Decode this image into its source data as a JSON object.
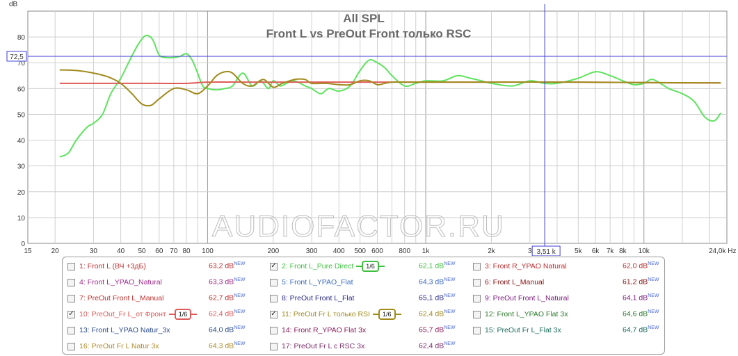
{
  "chart_data": {
    "type": "line",
    "title": "All SPL",
    "subtitle": "Front L vs PreOut Front только RSC",
    "watermark": "AUDIOFACTOR.RU",
    "y_unit": "dB",
    "x_unit": "Hz",
    "xscale": "log",
    "xlim": [
      15,
      24000
    ],
    "ylim": [
      0,
      90
    ],
    "grid": true,
    "x_tick_labels": [
      {
        "v": 15,
        "t": "15"
      },
      {
        "v": 20,
        "t": "20"
      },
      {
        "v": 30,
        "t": "30"
      },
      {
        "v": 40,
        "t": "40"
      },
      {
        "v": 50,
        "t": "50"
      },
      {
        "v": 60,
        "t": "60"
      },
      {
        "v": 70,
        "t": "70"
      },
      {
        "v": 80,
        "t": "80"
      },
      {
        "v": 100,
        "t": "100"
      },
      {
        "v": 200,
        "t": "200"
      },
      {
        "v": 300,
        "t": "300"
      },
      {
        "v": 400,
        "t": "400"
      },
      {
        "v": 500,
        "t": "500"
      },
      {
        "v": 600,
        "t": "600"
      },
      {
        "v": 800,
        "t": "800"
      },
      {
        "v": 1000,
        "t": "1k"
      },
      {
        "v": 2000,
        "t": "2k"
      },
      {
        "v": 3000,
        "t": "3"
      },
      {
        "v": 5000,
        "t": "5k"
      },
      {
        "v": 6000,
        "t": "6k"
      },
      {
        "v": 7000,
        "t": "7k"
      },
      {
        "v": 8000,
        "t": "8k"
      },
      {
        "v": 10000,
        "t": "10k"
      }
    ],
    "x_end_label": "24,0k Hz",
    "y_ticks": [
      0,
      10,
      20,
      30,
      40,
      50,
      60,
      70,
      80
    ],
    "cursor": {
      "freq": 3510,
      "freq_label": "3,51 k",
      "level": 72.5,
      "level_label": "72,5"
    },
    "series": [
      {
        "name": "2: Front L_Pure Direct",
        "color": "#5ee35e",
        "x": [
          21,
          23,
          25,
          28,
          30,
          33,
          36,
          40,
          44,
          48,
          52,
          56,
          60,
          65,
          70,
          75,
          80,
          85,
          90,
          95,
          100,
          110,
          120,
          130,
          145,
          160,
          175,
          190,
          200,
          215,
          230,
          250,
          280,
          300,
          330,
          360,
          400,
          450,
          500,
          550,
          600,
          650,
          700,
          800,
          900,
          1000,
          1200,
          1400,
          1600,
          1800,
          2000,
          2500,
          3000,
          3500,
          4000,
          5000,
          6000,
          7000,
          8000,
          9000,
          10000,
          11000,
          13000,
          15000,
          17000,
          19000,
          21000,
          22500
        ],
        "y": [
          33.5,
          35,
          40,
          45,
          46.5,
          50,
          58,
          64,
          71,
          77,
          80.5,
          79,
          73,
          72,
          72,
          72.5,
          73.5,
          71,
          66,
          61,
          60,
          59.5,
          60,
          61,
          66,
          61,
          63,
          60,
          63,
          61,
          62,
          63,
          61,
          60,
          58,
          60,
          59,
          61,
          67,
          71,
          70,
          68,
          65,
          61,
          62,
          63,
          63,
          65,
          64,
          63,
          62,
          61,
          63,
          62,
          62,
          64,
          66.5,
          65,
          63,
          61.5,
          62,
          63.5,
          60,
          58,
          55,
          49,
          47.5,
          50.5
        ]
      },
      {
        "name": "10: PreOut_Fr L_от Фронт",
        "color": "#e05a5a",
        "x": [
          21,
          30,
          40,
          50,
          60,
          80,
          100,
          150,
          200,
          300,
          500,
          1000,
          2000,
          5000,
          10000,
          15000,
          22500
        ],
        "y": [
          62,
          62,
          62,
          62,
          62,
          62,
          62.5,
          62.5,
          62.5,
          62.5,
          62.5,
          62.5,
          62.5,
          62.5,
          62.3,
          62.2,
          62.2
        ]
      },
      {
        "name": "11: PreOut Fr L только RSI",
        "color": "#a08a1c",
        "x": [
          21,
          25,
          30,
          35,
          40,
          45,
          50,
          55,
          60,
          70,
          80,
          90,
          100,
          110,
          120,
          130,
          145,
          160,
          180,
          200,
          220,
          250,
          280,
          300,
          350,
          400,
          450,
          500,
          550,
          600,
          650,
          700,
          800,
          900,
          1000,
          2000,
          5000,
          10000,
          22500
        ],
        "y": [
          67.2,
          67,
          66,
          64.5,
          62,
          58,
          54,
          53.5,
          56,
          60,
          59.5,
          58,
          61,
          65,
          66.5,
          66,
          62,
          61,
          63.5,
          60.5,
          62,
          63.5,
          63.5,
          62,
          62,
          61.5,
          61.5,
          63,
          63,
          61.5,
          62,
          62.5,
          62.5,
          62.5,
          62.5,
          62.5,
          62.5,
          62.3,
          62.2
        ]
      }
    ]
  },
  "legend": [
    {
      "id": "1",
      "label": "1: Front L (ВЧ +3дБ)",
      "value": "63,2 dB",
      "new": "NEW",
      "checked": false,
      "color": "#c03030",
      "vcolor": "#c03030",
      "col": 0,
      "row": 0
    },
    {
      "id": "2",
      "label": "2: Front L_Pure Direct",
      "value": "62,1 dB",
      "new": "NEW",
      "checked": true,
      "smoothing": "1/6",
      "color": "#3fbf3f",
      "vcolor": "#3fbf3f",
      "col": 1,
      "row": 0
    },
    {
      "id": "3",
      "label": "3: Front R_YPAO Natural",
      "value": "62,0 dB",
      "new": "NEW",
      "checked": false,
      "color": "#c03030",
      "vcolor": "#c03030",
      "col": 2,
      "row": 0
    },
    {
      "id": "4",
      "label": "4: Front L_YPAO_Natural",
      "value": "63,3 dB",
      "new": "NEW",
      "checked": false,
      "color": "#a02a8a",
      "vcolor": "#a02a8a",
      "col": 0,
      "row": 1
    },
    {
      "id": "5",
      "label": "5: Front L_YPAO_Flat",
      "value": "64,3 dB",
      "new": "NEW",
      "checked": false,
      "color": "#3a6ac0",
      "vcolor": "#3a6ac0",
      "col": 1,
      "row": 1
    },
    {
      "id": "6",
      "label": "6: Front L_Manual",
      "value": "61,2 dB",
      "new": "NEW",
      "checked": false,
      "color": "#8a1010",
      "vcolor": "#8a1010",
      "col": 2,
      "row": 1
    },
    {
      "id": "7",
      "label": "7: PreOut Front L_Manual",
      "value": "62,7 dB",
      "new": "NEW",
      "checked": false,
      "color": "#c03030",
      "vcolor": "#c03030",
      "col": 0,
      "row": 2
    },
    {
      "id": "8",
      "label": "8: PreOut Front L_Flat",
      "value": "65,1 dB",
      "new": "NEW",
      "checked": false,
      "color": "#2a2a8a",
      "vcolor": "#2a2a8a",
      "col": 1,
      "row": 2
    },
    {
      "id": "9",
      "label": "9: PreOut Front L_Natural",
      "value": "64,1 dB",
      "new": "NEW",
      "checked": false,
      "color": "#7a1a7a",
      "vcolor": "#7a1a7a",
      "col": 2,
      "row": 2
    },
    {
      "id": "10",
      "label": "10: PreOut_Fr L_от Фронт",
      "value": "62,4 dB",
      "new": "NEW",
      "checked": true,
      "smoothing": "1/6",
      "color": "#e05a5a",
      "vcolor": "#e05a5a",
      "col": 0,
      "row": 3
    },
    {
      "id": "11",
      "label": "11: PreOut Fr L только RSI",
      "value": "62,4 dB",
      "new": "NEW",
      "checked": true,
      "smoothing": "1/6",
      "color": "#a08a1c",
      "vcolor": "#a08a1c",
      "col": 1,
      "row": 3
    },
    {
      "id": "12",
      "label": "12: Front L_YPAO Flat 3x",
      "value": "64,6 dB",
      "new": "NEW",
      "checked": false,
      "color": "#2a7a2a",
      "vcolor": "#2a7a2a",
      "col": 2,
      "row": 3
    },
    {
      "id": "13",
      "label": "13: Front L_YPAO Natur_3x",
      "value": "64,0 dB",
      "new": "NEW",
      "checked": false,
      "color": "#2a4a8a",
      "vcolor": "#2a4a8a",
      "col": 0,
      "row": 4
    },
    {
      "id": "14",
      "label": "14: Front R_YPAO Flat 3x",
      "value": "65,7 dB",
      "new": "NEW",
      "checked": false,
      "color": "#8a1a5a",
      "vcolor": "#8a1a5a",
      "col": 1,
      "row": 4
    },
    {
      "id": "15",
      "label": "15: PreOut Fr L_Flat 3x",
      "value": "64,7 dB",
      "new": "NEW",
      "checked": false,
      "color": "#1a6a5a",
      "vcolor": "#1a6a5a",
      "col": 2,
      "row": 4
    },
    {
      "id": "16",
      "label": "16: PreOut Fr L Natur 3x",
      "value": "64,3 dB",
      "new": "NEW",
      "checked": false,
      "color": "#b08a2a",
      "vcolor": "#b08a2a",
      "col": 0,
      "row": 5
    },
    {
      "id": "17",
      "label": "17: PreOut Fr L c RSC 3x",
      "value": "62,4 dB",
      "new": "NEW",
      "checked": false,
      "color": "#7a2a6a",
      "vcolor": "#7a2a6a",
      "col": 1,
      "row": 5
    }
  ]
}
